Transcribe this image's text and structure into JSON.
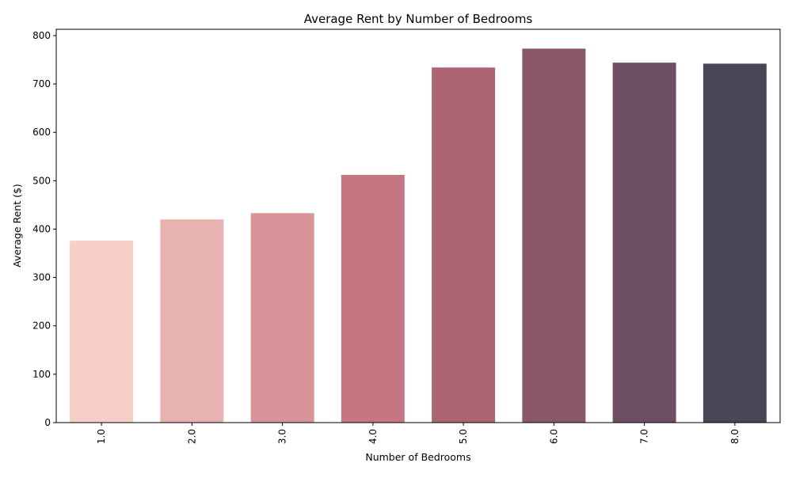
{
  "chart_data": {
    "type": "bar",
    "title": "Average Rent by Number of Bedrooms",
    "xlabel": "Number of Bedrooms",
    "ylabel": "Average Rent ($)",
    "categories": [
      "1.0",
      "2.0",
      "3.0",
      "4.0",
      "5.0",
      "6.0",
      "7.0",
      "8.0"
    ],
    "values": [
      376,
      420,
      433,
      512,
      734,
      773,
      744,
      742
    ],
    "colors": [
      "#f6cfc8",
      "#e8b2b0",
      "#d79499",
      "#c67680",
      "#ac6472",
      "#8a5867",
      "#6d4e62",
      "#4b4558"
    ],
    "ylim": [
      0,
      813
    ],
    "yticks": [
      0,
      100,
      200,
      300,
      400,
      500,
      600,
      700,
      800
    ],
    "grid": false,
    "legend": "none"
  }
}
